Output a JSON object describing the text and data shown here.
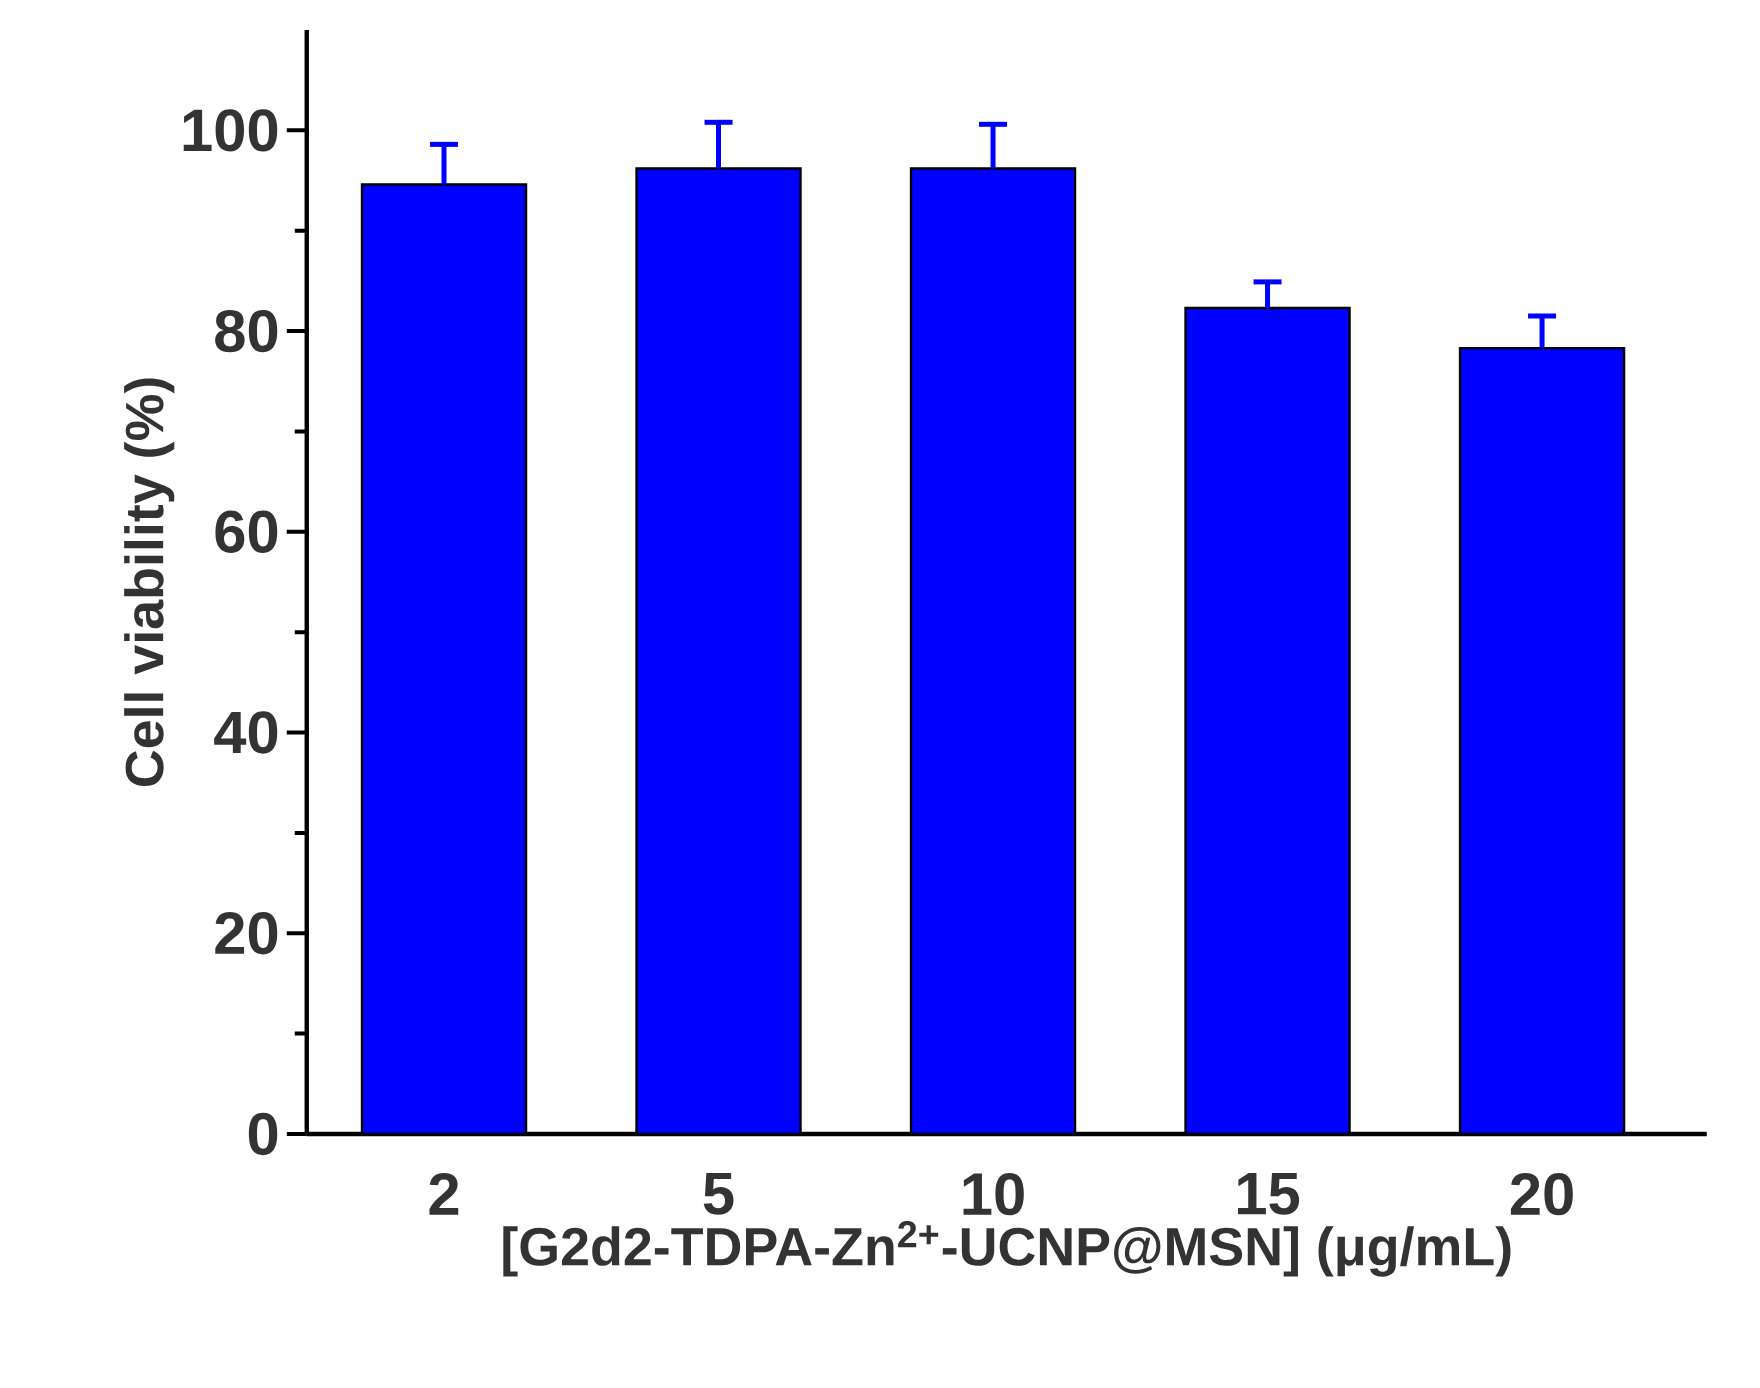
{
  "chart_data": {
    "type": "bar",
    "categories": [
      "2",
      "5",
      "10",
      "15",
      "20"
    ],
    "values": [
      94.6,
      96.2,
      96.2,
      82.3,
      78.3
    ],
    "errors": [
      4.0,
      4.6,
      4.4,
      2.6,
      3.2
    ],
    "color": "#0000ff",
    "xlabel": "[G2d2-TDPA-Zn$^{2+}$-UCNP@MSN] (μg/mL)",
    "ylabel": "Cell viability (%)",
    "ylim": [
      0,
      110
    ],
    "yticks": [
      0,
      20,
      40,
      60,
      80,
      100
    ],
    "grid": false
  }
}
